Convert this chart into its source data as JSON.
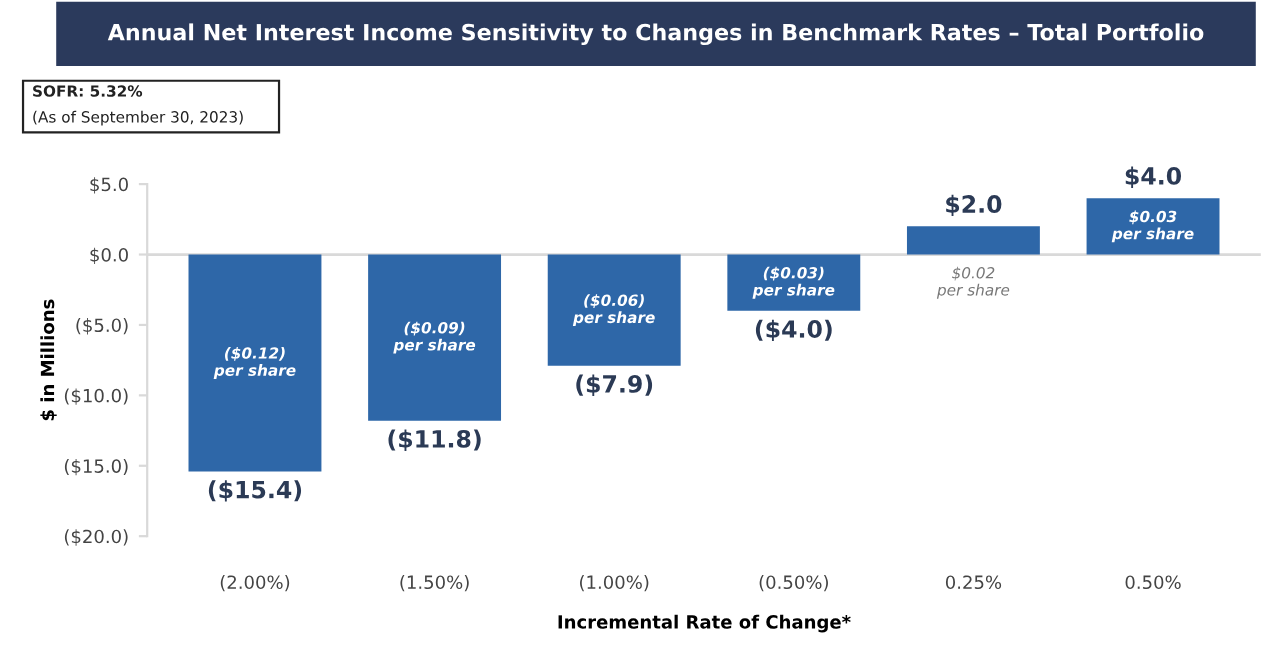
{
  "chart_data": {
    "type": "bar",
    "title": "Annual Net Interest Income Sensitivity to Changes in Benchmark Rates – Total Portfolio",
    "xlabel": "Incremental Rate of Change*",
    "ylabel": "$ in Millions",
    "categories": [
      "(2.00%)",
      "(1.50%)",
      "(1.00%)",
      "(0.50%)",
      "0.25%",
      "0.50%"
    ],
    "values": [
      -15.4,
      -11.8,
      -7.9,
      -4.0,
      2.0,
      4.0
    ],
    "value_labels": [
      "($15.4)",
      "($11.8)",
      "($7.9)",
      "($4.0)",
      "$2.0",
      "$4.0"
    ],
    "color": "#2e67a8",
    "ylim": [
      -20,
      5
    ],
    "yticks": [
      {
        "value": 5,
        "label": "$5.0"
      },
      {
        "value": 0,
        "label": "$0.0"
      },
      {
        "value": -5,
        "label": "($5.0)"
      },
      {
        "value": -10,
        "label": "($10.0)"
      },
      {
        "value": -15,
        "label": "($15.0)"
      },
      {
        "value": -20,
        "label": "($20.0)"
      }
    ],
    "ref_lines": [
      {
        "axis": "y",
        "value": 0,
        "color": "#d9d9d9"
      }
    ],
    "annotations": [
      "SOFR: 5.32%",
      "(As of September 30, 2023)",
      "($0.12)\nper share",
      "($0.09)\nper share",
      "($0.06)\nper share",
      "($0.03)\nper share",
      "$0.02\nper share",
      "$0.03\nper share"
    ],
    "grid": false,
    "legend": false
  }
}
